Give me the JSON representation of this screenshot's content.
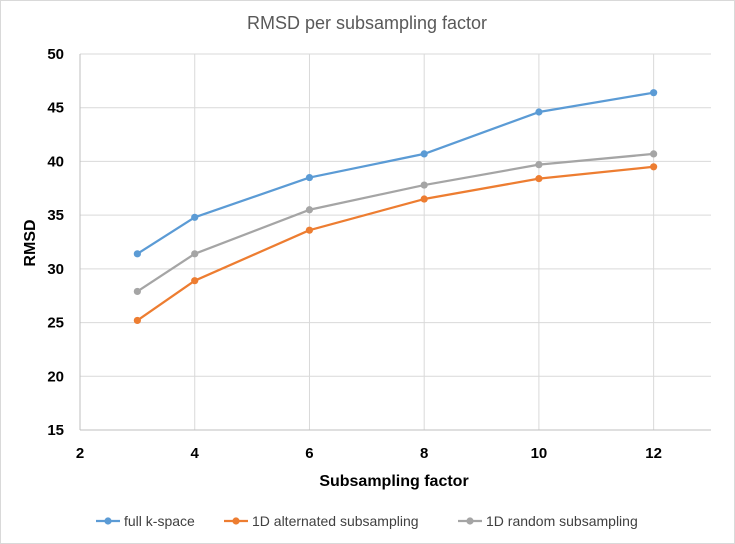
{
  "chart_data": {
    "type": "line",
    "title": "RMSD per subsampling factor",
    "xlabel": "Subsampling factor",
    "ylabel": "RMSD",
    "xlim": [
      2,
      13
    ],
    "ylim": [
      15,
      50
    ],
    "xticks": [
      2,
      4,
      6,
      8,
      10,
      12
    ],
    "yticks": [
      15,
      20,
      25,
      30,
      35,
      40,
      45,
      50
    ],
    "grid": true,
    "legend_position": "bottom",
    "series": [
      {
        "name": "full k-space",
        "color": "#5b9bd5",
        "x": [
          3,
          4,
          6,
          8,
          10,
          12
        ],
        "values": [
          31.4,
          34.8,
          38.5,
          40.7,
          44.6,
          46.4
        ]
      },
      {
        "name": "1D alternated subsampling",
        "color": "#ed7d31",
        "x": [
          3,
          4,
          6,
          8,
          10,
          12
        ],
        "values": [
          25.2,
          28.9,
          33.6,
          36.5,
          38.4,
          39.5
        ]
      },
      {
        "name": "1D random subsampling",
        "color": "#a5a5a5",
        "x": [
          3,
          4,
          6,
          8,
          10,
          12
        ],
        "values": [
          27.9,
          31.4,
          35.5,
          37.8,
          39.7,
          40.7
        ]
      }
    ]
  }
}
